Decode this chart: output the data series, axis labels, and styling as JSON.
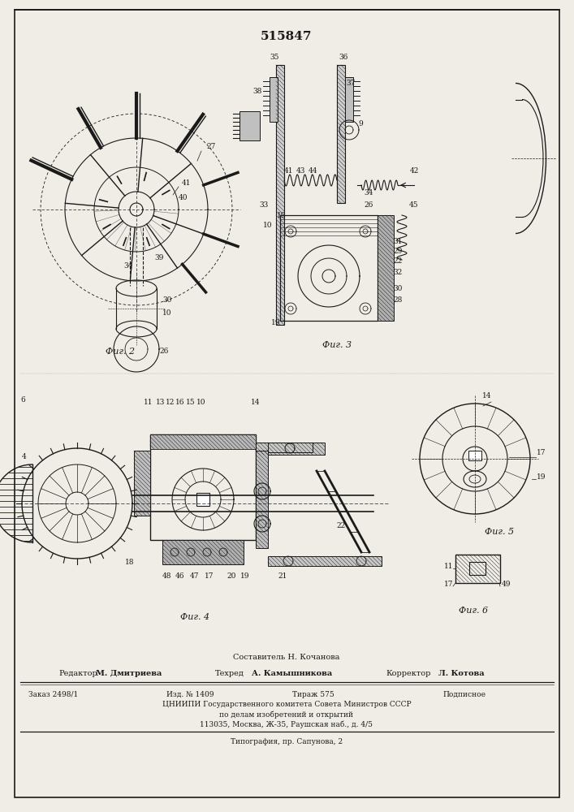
{
  "patent_number": "515847",
  "bg_color": "#f0ede6",
  "line_color": "#1a1a1a",
  "footer": {
    "composer": "Составитель Н. Кочанова",
    "editor_label": "Редактор",
    "editor": "М. Дмитриева",
    "tech_label": "Техред",
    "tech": "А. Камышникова",
    "corrector_label": "Корректор",
    "corrector": "Л. Котова",
    "order": "Заказ 2498/1",
    "izd": "Изд. № 1409",
    "tirazh": "Тираж 575",
    "podpisnoe": "Подписное",
    "cniippi": "ЦНИИПИ Государственного комитета Совета Министров СССР",
    "po_delam": "по делам изобретений и открытий",
    "address": "113035, Москва, Ж-35, Раушская наб., д. 4/5",
    "typography": "Типография, пр. Сапунова, 2"
  }
}
